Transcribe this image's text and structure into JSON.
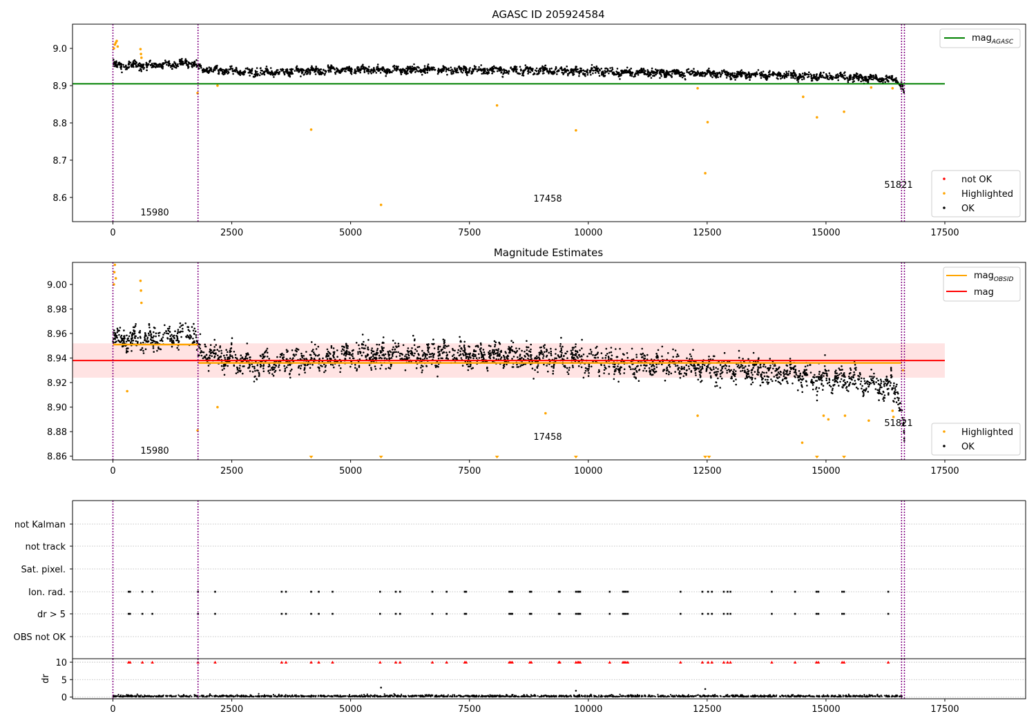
{
  "colors": {
    "ok": "#000000",
    "highlighted": "#ffa500",
    "not_ok": "#ff0000",
    "mag_agasc": "#008000",
    "mag_obsid": "#ffa500",
    "mag": "#ff0000",
    "band": "#ffcccc",
    "obs_divider": "#800080",
    "grid": "#b0b0b0"
  },
  "chart_data": [
    {
      "type": "scatter",
      "title": "AGASC ID 205924584",
      "x_ticks": [
        "0",
        "2500",
        "5000",
        "7500",
        "10000",
        "12500",
        "15000",
        "17500"
      ],
      "y_ticks": [
        "9.0",
        "8.9",
        "8.8",
        "8.7",
        "8.6"
      ],
      "xlim": [
        -850,
        19200
      ],
      "ylim": [
        8.535,
        9.065
      ],
      "legend_upper": [
        {
          "label": "mag",
          "subscript": "AGASC",
          "color": "#008000"
        }
      ],
      "legend_lower": [
        {
          "label": "not OK",
          "color": "#ff0000"
        },
        {
          "label": "Highlighted",
          "color": "#ffa500"
        },
        {
          "label": "OK",
          "color": "#000000"
        }
      ],
      "observation_ids": [
        "15980",
        "17458",
        "51821"
      ],
      "observation_boundaries": [
        0,
        1790,
        16590,
        16650
      ],
      "mag_agasc": 8.905,
      "mag_agasc_xrange": [
        -850,
        17500
      ],
      "ok_trend": [
        [
          0,
          8.955
        ],
        [
          1000,
          8.955
        ],
        [
          1700,
          8.962
        ],
        [
          1800,
          8.945
        ],
        [
          3000,
          8.935
        ],
        [
          5000,
          8.942
        ],
        [
          8000,
          8.942
        ],
        [
          10000,
          8.938
        ],
        [
          12500,
          8.932
        ],
        [
          14000,
          8.928
        ],
        [
          16000,
          8.92
        ],
        [
          16500,
          8.915
        ],
        [
          16620,
          8.89
        ],
        [
          16650,
          8.875
        ]
      ],
      "ok_scatter_sd": 0.008,
      "highlighted_points": [
        [
          20,
          9.0
        ],
        [
          40,
          9.01
        ],
        [
          60,
          9.015
        ],
        [
          80,
          9.02
        ],
        [
          100,
          9.005
        ],
        [
          580,
          8.998
        ],
        [
          590,
          8.985
        ],
        [
          600,
          8.975
        ],
        [
          4170,
          8.782
        ],
        [
          5640,
          8.58
        ],
        [
          8080,
          8.847
        ],
        [
          9740,
          8.78
        ],
        [
          12460,
          8.665
        ],
        [
          12510,
          8.802
        ],
        [
          14520,
          8.87
        ],
        [
          14810,
          8.815
        ],
        [
          15380,
          8.83
        ],
        [
          1780,
          8.88
        ],
        [
          2200,
          8.9
        ],
        [
          12300,
          8.893
        ],
        [
          15950,
          8.895
        ],
        [
          16400,
          8.893
        ]
      ]
    },
    {
      "type": "scatter",
      "title": "Magnitude Estimates",
      "x_ticks": [
        "0",
        "2500",
        "5000",
        "7500",
        "10000",
        "12500",
        "15000",
        "17500"
      ],
      "y_ticks": [
        "9.00",
        "8.98",
        "8.96",
        "8.94",
        "8.92",
        "8.90",
        "8.88",
        "8.86"
      ],
      "xlim": [
        -850,
        19200
      ],
      "ylim": [
        8.857,
        9.018
      ],
      "legend_upper": [
        {
          "label": "mag",
          "subscript": "OBSID",
          "color": "#ffa500"
        },
        {
          "label": "mag",
          "subscript": "",
          "color": "#ff0000"
        }
      ],
      "legend_lower": [
        {
          "label": "Highlighted",
          "color": "#ffa500"
        },
        {
          "label": "OK",
          "color": "#000000"
        }
      ],
      "observation_ids": [
        "15980",
        "17458",
        "51821"
      ],
      "observation_boundaries": [
        0,
        1790,
        16590,
        16650
      ],
      "mag": 8.938,
      "mag_xrange": [
        -850,
        17500
      ],
      "mag_band": [
        8.924,
        8.952
      ],
      "mag_obsid_segments": [
        [
          0,
          1790,
          8.951
        ],
        [
          1790,
          16590,
          8.936
        ],
        [
          16590,
          16650,
          8.93
        ]
      ],
      "ok_trend": [
        [
          0,
          8.955
        ],
        [
          1000,
          8.955
        ],
        [
          1700,
          8.962
        ],
        [
          1800,
          8.945
        ],
        [
          3000,
          8.935
        ],
        [
          5000,
          8.942
        ],
        [
          8000,
          8.942
        ],
        [
          10000,
          8.938
        ],
        [
          12500,
          8.932
        ],
        [
          14000,
          8.928
        ],
        [
          16000,
          8.92
        ],
        [
          16500,
          8.915
        ],
        [
          16620,
          8.89
        ],
        [
          16650,
          8.875
        ]
      ],
      "ok_scatter_sd": 0.008,
      "highlighted_points": [
        [
          20,
          9.0
        ],
        [
          30,
          9.01
        ],
        [
          40,
          9.016
        ],
        [
          60,
          9.005
        ],
        [
          580,
          9.003
        ],
        [
          590,
          8.995
        ],
        [
          600,
          8.985
        ],
        [
          300,
          8.913
        ],
        [
          1780,
          8.881
        ],
        [
          2200,
          8.9
        ],
        [
          9100,
          8.895
        ],
        [
          12300,
          8.893
        ],
        [
          14500,
          8.871
        ],
        [
          14950,
          8.893
        ],
        [
          15050,
          8.89
        ],
        [
          15400,
          8.893
        ],
        [
          15900,
          8.889
        ],
        [
          16400,
          8.897
        ],
        [
          16420,
          8.892
        ]
      ],
      "offscale_low_x": [
        4170,
        5640,
        8080,
        9740,
        12460,
        12540,
        14810,
        15380
      ]
    },
    {
      "type": "scatter",
      "title": "",
      "x_ticks": [
        "0",
        "2500",
        "5000",
        "7500",
        "10000",
        "12500",
        "15000",
        "17500"
      ],
      "xlim": [
        -850,
        19200
      ],
      "flag_labels": [
        "not Kalman",
        "not track",
        "Sat. pixel.",
        "Ion. rad.",
        "dr > 5",
        "OBS not OK"
      ],
      "dr_ylabel": "dr",
      "dr_ticks": [
        "10",
        "5",
        "0"
      ],
      "dr_ylim": [
        -0.5,
        11
      ],
      "observation_boundaries": [
        0,
        1790,
        16590,
        16650
      ],
      "flag_x": [
        330,
        360,
        620,
        830,
        1790,
        2150,
        3550,
        3640,
        4170,
        4330,
        4620,
        5620,
        5950,
        6040,
        6720,
        7020,
        7400,
        7430,
        8340,
        8370,
        8400,
        8770,
        8800,
        9380,
        9400,
        9740,
        9780,
        9800,
        9830,
        10450,
        10730,
        10760,
        10790,
        10830,
        11940,
        12400,
        12520,
        12600,
        12850,
        12930,
        12990,
        13860,
        14350,
        14800,
        14840,
        15340,
        15380,
        16310
      ],
      "dr_outliers": [
        [
          5640,
          2.7
        ],
        [
          9740,
          1.8
        ],
        [
          12460,
          2.3
        ]
      ]
    }
  ]
}
